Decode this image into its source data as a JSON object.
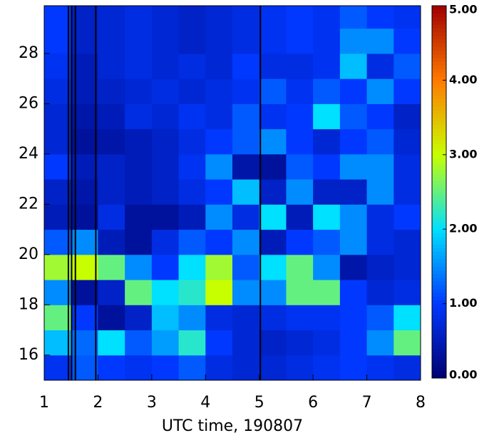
{
  "chart_data": {
    "type": "heatmap",
    "xlabel": "UTC time, 190807",
    "x": [
      1,
      1.5,
      2,
      2.5,
      3,
      3.5,
      4,
      4.5,
      5,
      5.5,
      6,
      6.5,
      7,
      7.5,
      8
    ],
    "y": [
      15,
      16,
      17,
      18,
      19,
      20,
      21,
      22,
      23,
      24,
      25,
      26,
      27,
      28,
      29,
      29.9
    ],
    "z": [
      [
        0.9,
        1.2,
        1.0,
        0.9,
        1.0,
        1.2,
        0.8,
        0.7,
        0.7,
        0.8,
        0.9,
        1.0,
        0.9,
        0.8
      ],
      [
        1.8,
        1.3,
        2.0,
        1.2,
        1.6,
        2.2,
        1.0,
        0.7,
        0.6,
        0.7,
        0.8,
        1.0,
        1.5,
        2.5
      ],
      [
        2.5,
        1.0,
        0.3,
        0.6,
        1.8,
        1.5,
        0.8,
        0.7,
        0.8,
        0.9,
        0.9,
        1.0,
        1.2,
        2.0
      ],
      [
        1.5,
        0.3,
        0.6,
        2.5,
        2.0,
        2.2,
        3.0,
        1.5,
        1.5,
        2.5,
        2.5,
        1.0,
        0.7,
        0.8
      ],
      [
        2.8,
        3.0,
        2.5,
        1.5,
        1.0,
        2.0,
        2.8,
        1.2,
        2.0,
        2.5,
        1.5,
        0.4,
        0.6,
        0.7
      ],
      [
        1.2,
        1.5,
        0.5,
        0.3,
        0.8,
        1.2,
        1.0,
        1.5,
        0.5,
        1.0,
        1.2,
        1.5,
        0.8,
        0.7
      ],
      [
        0.5,
        0.3,
        0.8,
        0.3,
        0.3,
        0.5,
        1.5,
        0.8,
        2.0,
        0.5,
        2.0,
        1.5,
        0.8,
        1.0
      ],
      [
        0.6,
        0.4,
        0.6,
        0.5,
        0.6,
        0.8,
        1.0,
        1.8,
        0.6,
        1.5,
        0.6,
        0.6,
        1.5,
        0.8
      ],
      [
        1.0,
        0.5,
        0.6,
        0.5,
        0.6,
        0.9,
        1.5,
        0.4,
        0.3,
        1.2,
        1.0,
        1.5,
        1.5,
        0.8
      ],
      [
        0.7,
        0.3,
        0.4,
        0.5,
        0.6,
        0.8,
        1.0,
        1.2,
        1.5,
        1.0,
        0.7,
        1.0,
        1.2,
        0.7
      ],
      [
        0.7,
        0.4,
        0.5,
        0.8,
        0.7,
        0.9,
        0.8,
        1.2,
        0.9,
        1.0,
        2.0,
        1.2,
        1.0,
        0.6
      ],
      [
        0.8,
        0.5,
        0.6,
        0.7,
        0.8,
        0.7,
        0.8,
        0.9,
        1.2,
        0.9,
        1.2,
        1.0,
        1.5,
        1.0
      ],
      [
        0.9,
        0.5,
        0.7,
        0.8,
        0.7,
        0.8,
        0.7,
        1.0,
        0.8,
        0.8,
        0.9,
        1.8,
        0.8,
        1.2
      ],
      [
        1.0,
        0.6,
        0.7,
        0.8,
        0.7,
        0.6,
        0.7,
        0.8,
        0.9,
        1.0,
        0.9,
        1.5,
        1.5,
        1.0
      ],
      [
        1.0,
        0.6,
        0.7,
        0.8,
        0.7,
        0.6,
        0.7,
        0.8,
        0.9,
        1.0,
        0.9,
        1.2,
        1.0,
        0.9
      ]
    ],
    "vertical_lines": [
      1.45,
      1.51,
      1.58,
      1.96,
      5.02
    ],
    "xlim": [
      1,
      8
    ],
    "ylim": [
      15,
      29.9
    ],
    "xticks": [
      1,
      2,
      3,
      4,
      5,
      6,
      7,
      8
    ],
    "yticks": [
      16,
      18,
      20,
      22,
      24,
      26,
      28
    ],
    "clim": [
      0,
      5
    ],
    "cticks": [
      {
        "value": 0,
        "label": "0.00"
      },
      {
        "value": 1,
        "label": "1.00"
      },
      {
        "value": 2,
        "label": "2.00"
      },
      {
        "value": 3,
        "label": "3.00"
      },
      {
        "value": 4,
        "label": "4.00"
      },
      {
        "value": 5,
        "label": "5.00"
      }
    ],
    "colormap": [
      "#000070",
      "#0038ff",
      "#00e0ff",
      "#c8ff00",
      "#ff7a00",
      "#a00000"
    ]
  }
}
